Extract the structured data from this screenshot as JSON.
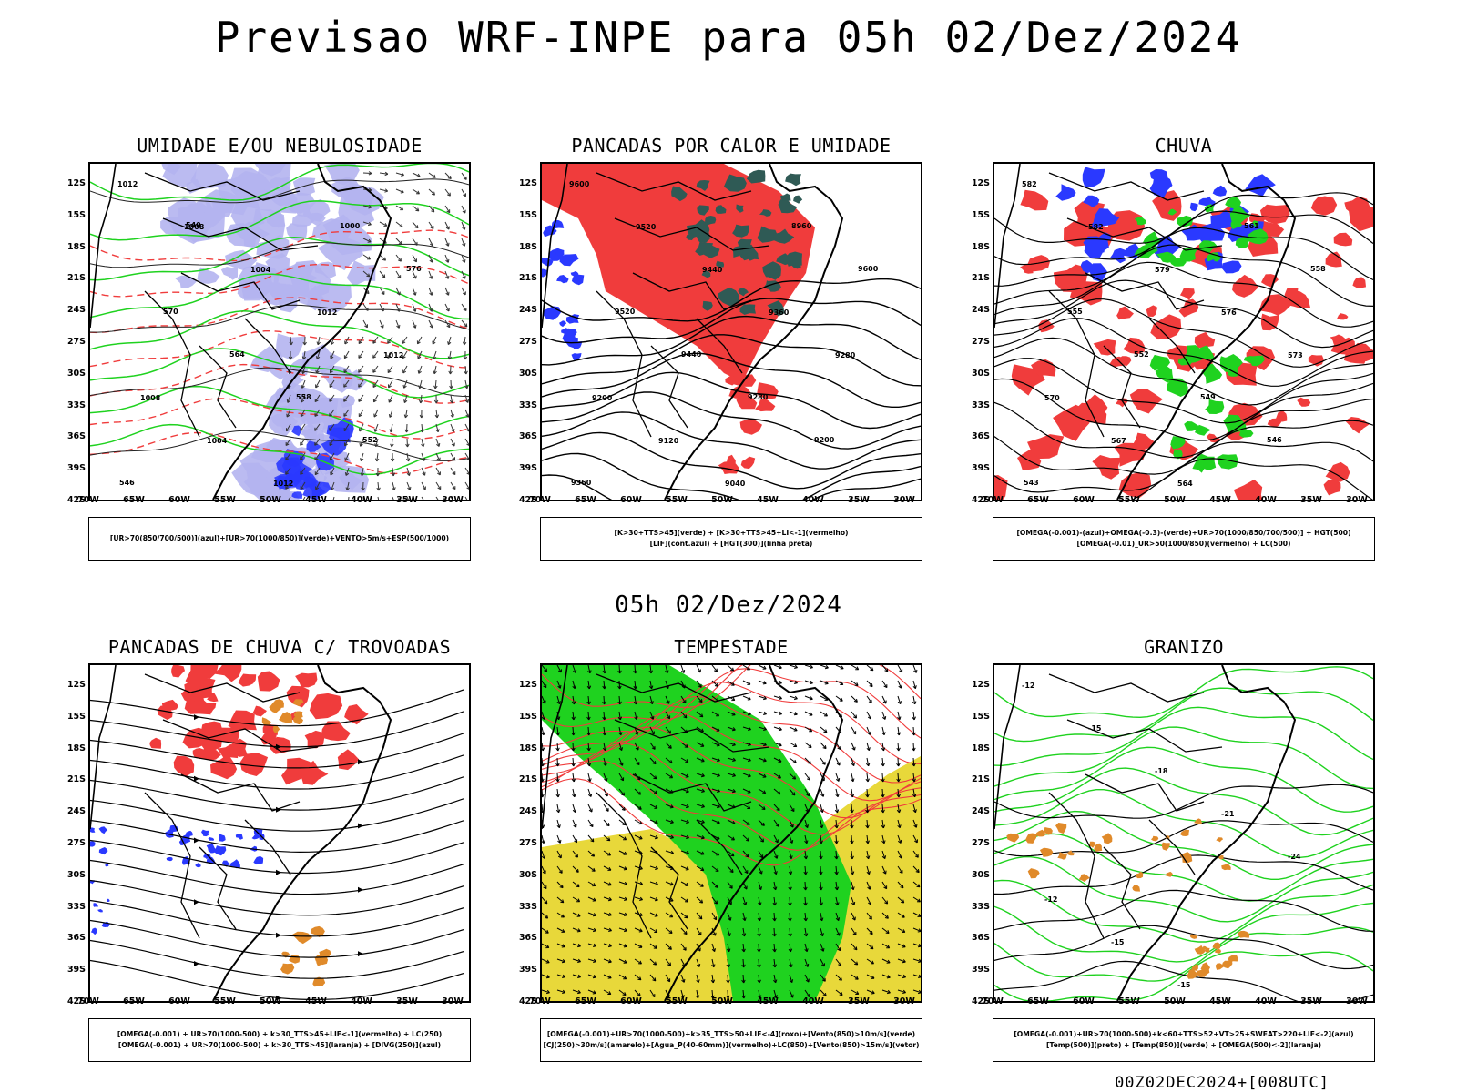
{
  "title": "Previsao WRF-INPE  para 05h 02/Dez/2024",
  "subtitle": "05h 02/Dez/2024",
  "footer": "00Z02DEC2024+[008UTC]",
  "lat_labels": [
    "12S",
    "15S",
    "18S",
    "21S",
    "24S",
    "27S",
    "30S",
    "33S",
    "36S",
    "39S",
    "42S"
  ],
  "lon_labels": [
    "70W",
    "65W",
    "60W",
    "55W",
    "50W",
    "45W",
    "40W",
    "35W",
    "30W"
  ],
  "colors": {
    "red": "#f03c3c",
    "green": "#1fd21f",
    "blue": "#2a39ff",
    "lavender": "#b4b4f0",
    "orange": "#e08a2a",
    "yellow": "#e8d83a",
    "darkteal": "#2f5a55",
    "black": "#000000"
  },
  "panels": [
    {
      "title": "UMIDADE E/OU NEBULOSIDADE",
      "legend": [
        "[UR>70(850/700/500)](azul)+[UR>70(1000/850)](verde)+VENTO>5m/s+ESP(500/1000)"
      ],
      "contours": [
        "1012",
        "1008",
        "1004",
        "1012",
        "1012",
        "1008",
        "1004",
        "1012",
        "1000",
        "576",
        "570",
        "564",
        "558",
        "552",
        "546",
        "540"
      ]
    },
    {
      "title": "PANCADAS POR CALOR E UMIDADE",
      "legend": [
        "[K>30+TTS>45](verde) + [K>30+TTS>45+LI<-1](vermelho)",
        "[LIF](cont.azul) + [HGT(300)](linha preta)"
      ],
      "contours": [
        "9600",
        "9520",
        "9440",
        "9360",
        "9280",
        "9200",
        "9120",
        "9040",
        "8960",
        "9600",
        "9520",
        "9440",
        "9280",
        "9200",
        "9360"
      ]
    },
    {
      "title": "CHUVA",
      "legend": [
        "[OMEGA(-0.001)-(azul)+OMEGA(-0.3)-(verde)+UR>70(1000/850/700/500)] + HGT(500)",
        "[OMEGA(-0.01)_UR>50(1000/850)(vermelho) + LC(500)"
      ],
      "contours": [
        "582",
        "582",
        "579",
        "576",
        "573",
        "570",
        "567",
        "564",
        "561",
        "558",
        "555",
        "552",
        "549",
        "546",
        "543"
      ]
    },
    {
      "title": "PANCADAS DE CHUVA C/ TROVOADAS",
      "legend": [
        "[OMEGA(-0.001) + UR>70(1000-500) + k>30_TTS>45+LIF<-1](vermelho) + LC(250)",
        "[OMEGA(-0.001) + UR>70(1000-500) + k>30_TTS>45](laranja) + [DIVG(250)](azul)"
      ],
      "contours": []
    },
    {
      "title": "TEMPESTADE",
      "legend": [
        "[OMEGA(-0.001)+UR>70(1000-500)+k>35_TTS>50+LIF<-4](roxo)+[Vento(850)>10m/s](verde)",
        "[CJ(250)>30m/s](amarelo)+[Agua_P(40-60mm)](vermelho)+LC(850)+[Vento(850)>15m/s](vetor)"
      ],
      "contours": []
    },
    {
      "title": "GRANIZO",
      "legend": [
        "[OMEGA(-0.001)+UR>70(1000-500)+k<60+TTS>52+VT>25+SWEAT>220+LIF<-2](azul)",
        "[Temp(500)](preto) + [Temp(850)](verde) + [OMEGA(500)<-2](laranja)"
      ],
      "contours": [
        "-12",
        "-15",
        "-18",
        "-21",
        "-24",
        "-12",
        "-15",
        "-15"
      ]
    }
  ]
}
